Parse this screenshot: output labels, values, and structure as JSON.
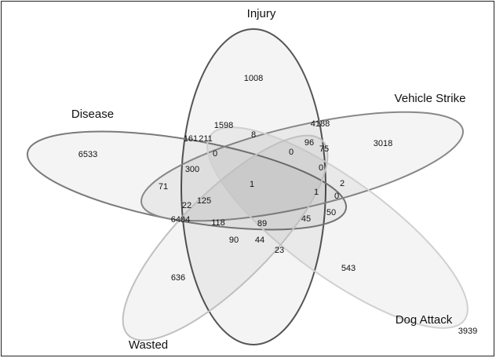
{
  "sets": [
    {
      "label": "Injury"
    },
    {
      "label": "Disease"
    },
    {
      "label": "Vehicle Strike"
    },
    {
      "label": "Dog Attack"
    },
    {
      "label": "Wasted"
    }
  ],
  "regions": [
    1008,
    1598,
    8,
    4188,
    161,
    211,
    0,
    96,
    75,
    3018,
    6533,
    0,
    300,
    0,
    2,
    71,
    1,
    1,
    0,
    22,
    125,
    50,
    6404,
    118,
    89,
    45,
    90,
    44,
    23,
    636,
    543
  ],
  "outside": 3939
}
